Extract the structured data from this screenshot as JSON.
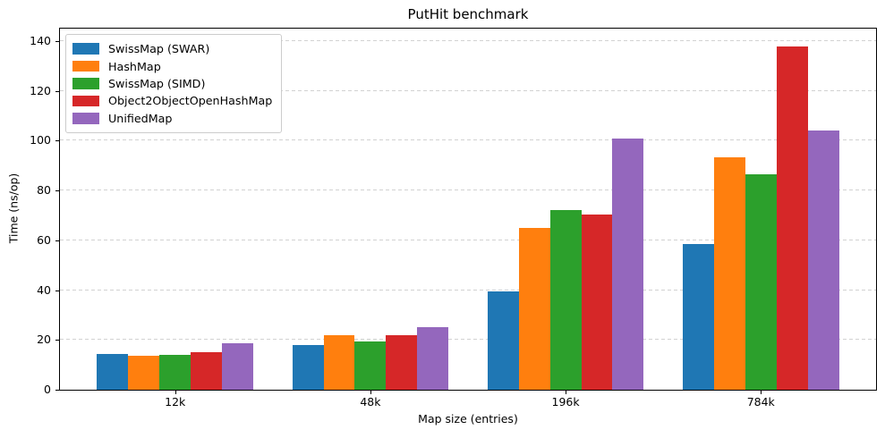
{
  "chart_data": {
    "type": "bar",
    "title": "PutHit benchmark",
    "xlabel": "Map size (entries)",
    "ylabel": "Time (ns/op)",
    "categories": [
      "12k",
      "48k",
      "196k",
      "784k"
    ],
    "series": [
      {
        "name": "SwissMap (SWAR)",
        "color": "#1f77b4",
        "values": [
          14.5,
          18,
          39.5,
          58.5
        ]
      },
      {
        "name": "HashMap",
        "color": "#ff7f0e",
        "values": [
          13.5,
          22,
          65,
          93.5
        ]
      },
      {
        "name": "SwissMap (SIMD)",
        "color": "#2ca02c",
        "values": [
          14,
          19.5,
          72,
          86.5
        ]
      },
      {
        "name": "Object2ObjectOpenHashMap",
        "color": "#d62728",
        "values": [
          15,
          22,
          70.5,
          138
        ]
      },
      {
        "name": "UnifiedMap",
        "color": "#9467bd",
        "values": [
          18.5,
          25,
          101,
          104
        ]
      }
    ],
    "ylim": [
      0,
      145
    ],
    "yticks": [
      0,
      20,
      40,
      60,
      80,
      100,
      120,
      140
    ],
    "grid": true,
    "grid_style": "dashed",
    "legend_position": "upper left",
    "background_color": "#ffffff",
    "spine_color": "#000000"
  }
}
